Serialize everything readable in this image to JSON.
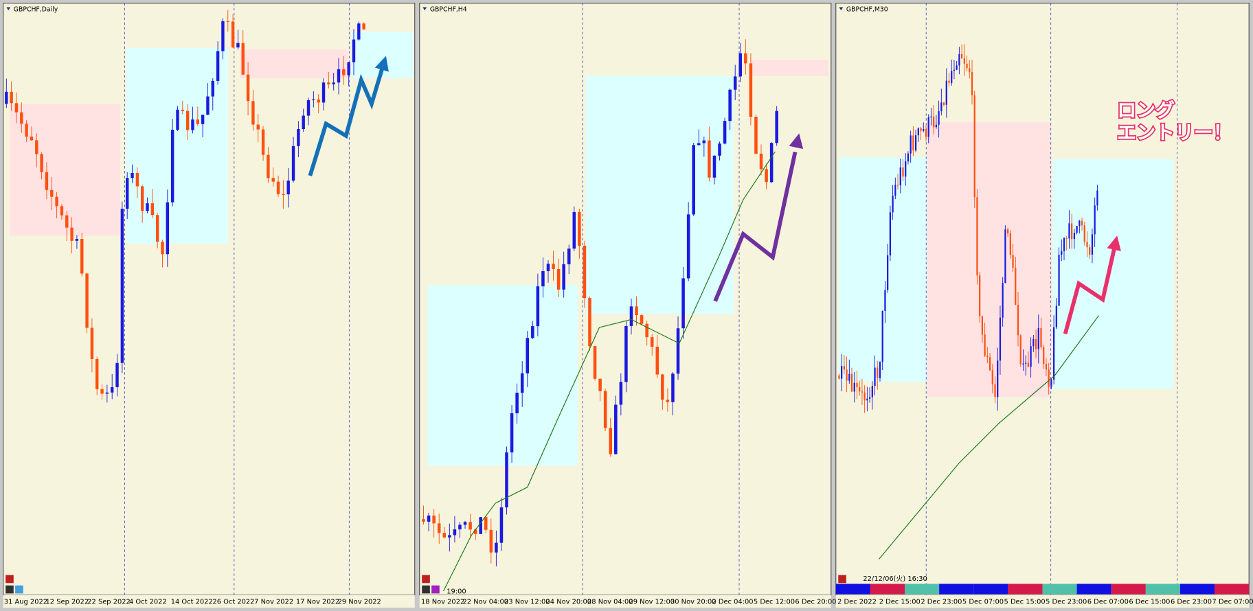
{
  "panels": [
    {
      "title": "GBPCHF,Daily",
      "x_labels": [
        "31 Aug 2022",
        "12 Sep 2022",
        "22 Sep 2022",
        "4 Oct 2022",
        "14 Oct 2022",
        "26 Oct 2022",
        "7 Nov 2022",
        "17 Nov 2022",
        "29 Nov 2022"
      ]
    },
    {
      "title": "GBPCHF,H4",
      "time_label": "19:00",
      "x_labels": [
        "18 Nov 2022",
        "22 Nov 04:00",
        "23 Nov 12:00",
        "24 Nov 20:00",
        "28 Nov 04:00",
        "29 Nov 12:00",
        "30 Nov 20:00",
        "2 Dec 04:00",
        "5 Dec 12:00",
        "6 Dec 20:00"
      ]
    },
    {
      "title": "GBPCHF,M30",
      "time_label": "22/12/06(火) 16:30",
      "x_labels": [
        "2 Dec 2022",
        "2 Dec 15:00",
        "2 Dec 23:00",
        "5 Dec 07:00",
        "5 Dec 15:00",
        "5 Dec 23:00",
        "6 Dec 07:00",
        "6 Dec 15:00",
        "6 Dec 23:00",
        "7 Dec 07:00"
      ]
    }
  ],
  "annotation": {
    "lines": [
      "ロング",
      "エントリー！"
    ]
  }
}
